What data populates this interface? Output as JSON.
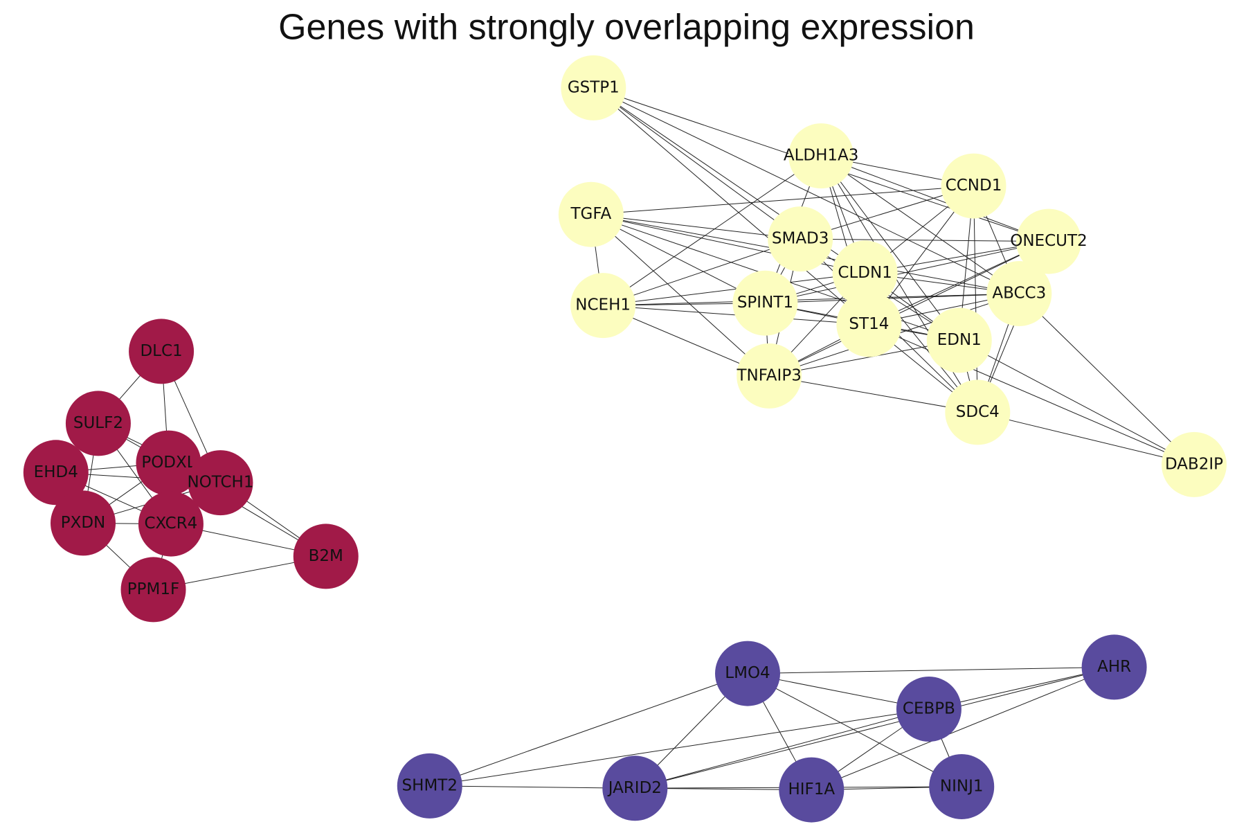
{
  "title": "Genes with strongly overlapping expression",
  "nodes": [
    {
      "label": "GSTP1"
    },
    {
      "label": "ALDH1A3"
    },
    {
      "label": "CCND1"
    },
    {
      "label": "TGFA"
    },
    {
      "label": "SMAD3"
    },
    {
      "label": "ONECUT2"
    },
    {
      "label": "CLDN1"
    },
    {
      "label": "NCEH1"
    },
    {
      "label": "SPINT1"
    },
    {
      "label": "ABCC3"
    },
    {
      "label": "ST14"
    },
    {
      "label": "EDN1"
    },
    {
      "label": "TNFAIP3"
    },
    {
      "label": "SDC4"
    },
    {
      "label": "DAB2IP"
    },
    {
      "label": "DLC1"
    },
    {
      "label": "SULF2"
    },
    {
      "label": "EHD4"
    },
    {
      "label": "PODXL"
    },
    {
      "label": "NOTCH1"
    },
    {
      "label": "PXDN"
    },
    {
      "label": "CXCR4"
    },
    {
      "label": "B2M"
    },
    {
      "label": "PPM1F"
    },
    {
      "label": "LMO4"
    },
    {
      "label": "AHR"
    },
    {
      "label": "CEBPB"
    },
    {
      "label": "SHMT2"
    },
    {
      "label": "JARID2"
    },
    {
      "label": "HIF1A"
    },
    {
      "label": "NINJ1"
    }
  ]
}
